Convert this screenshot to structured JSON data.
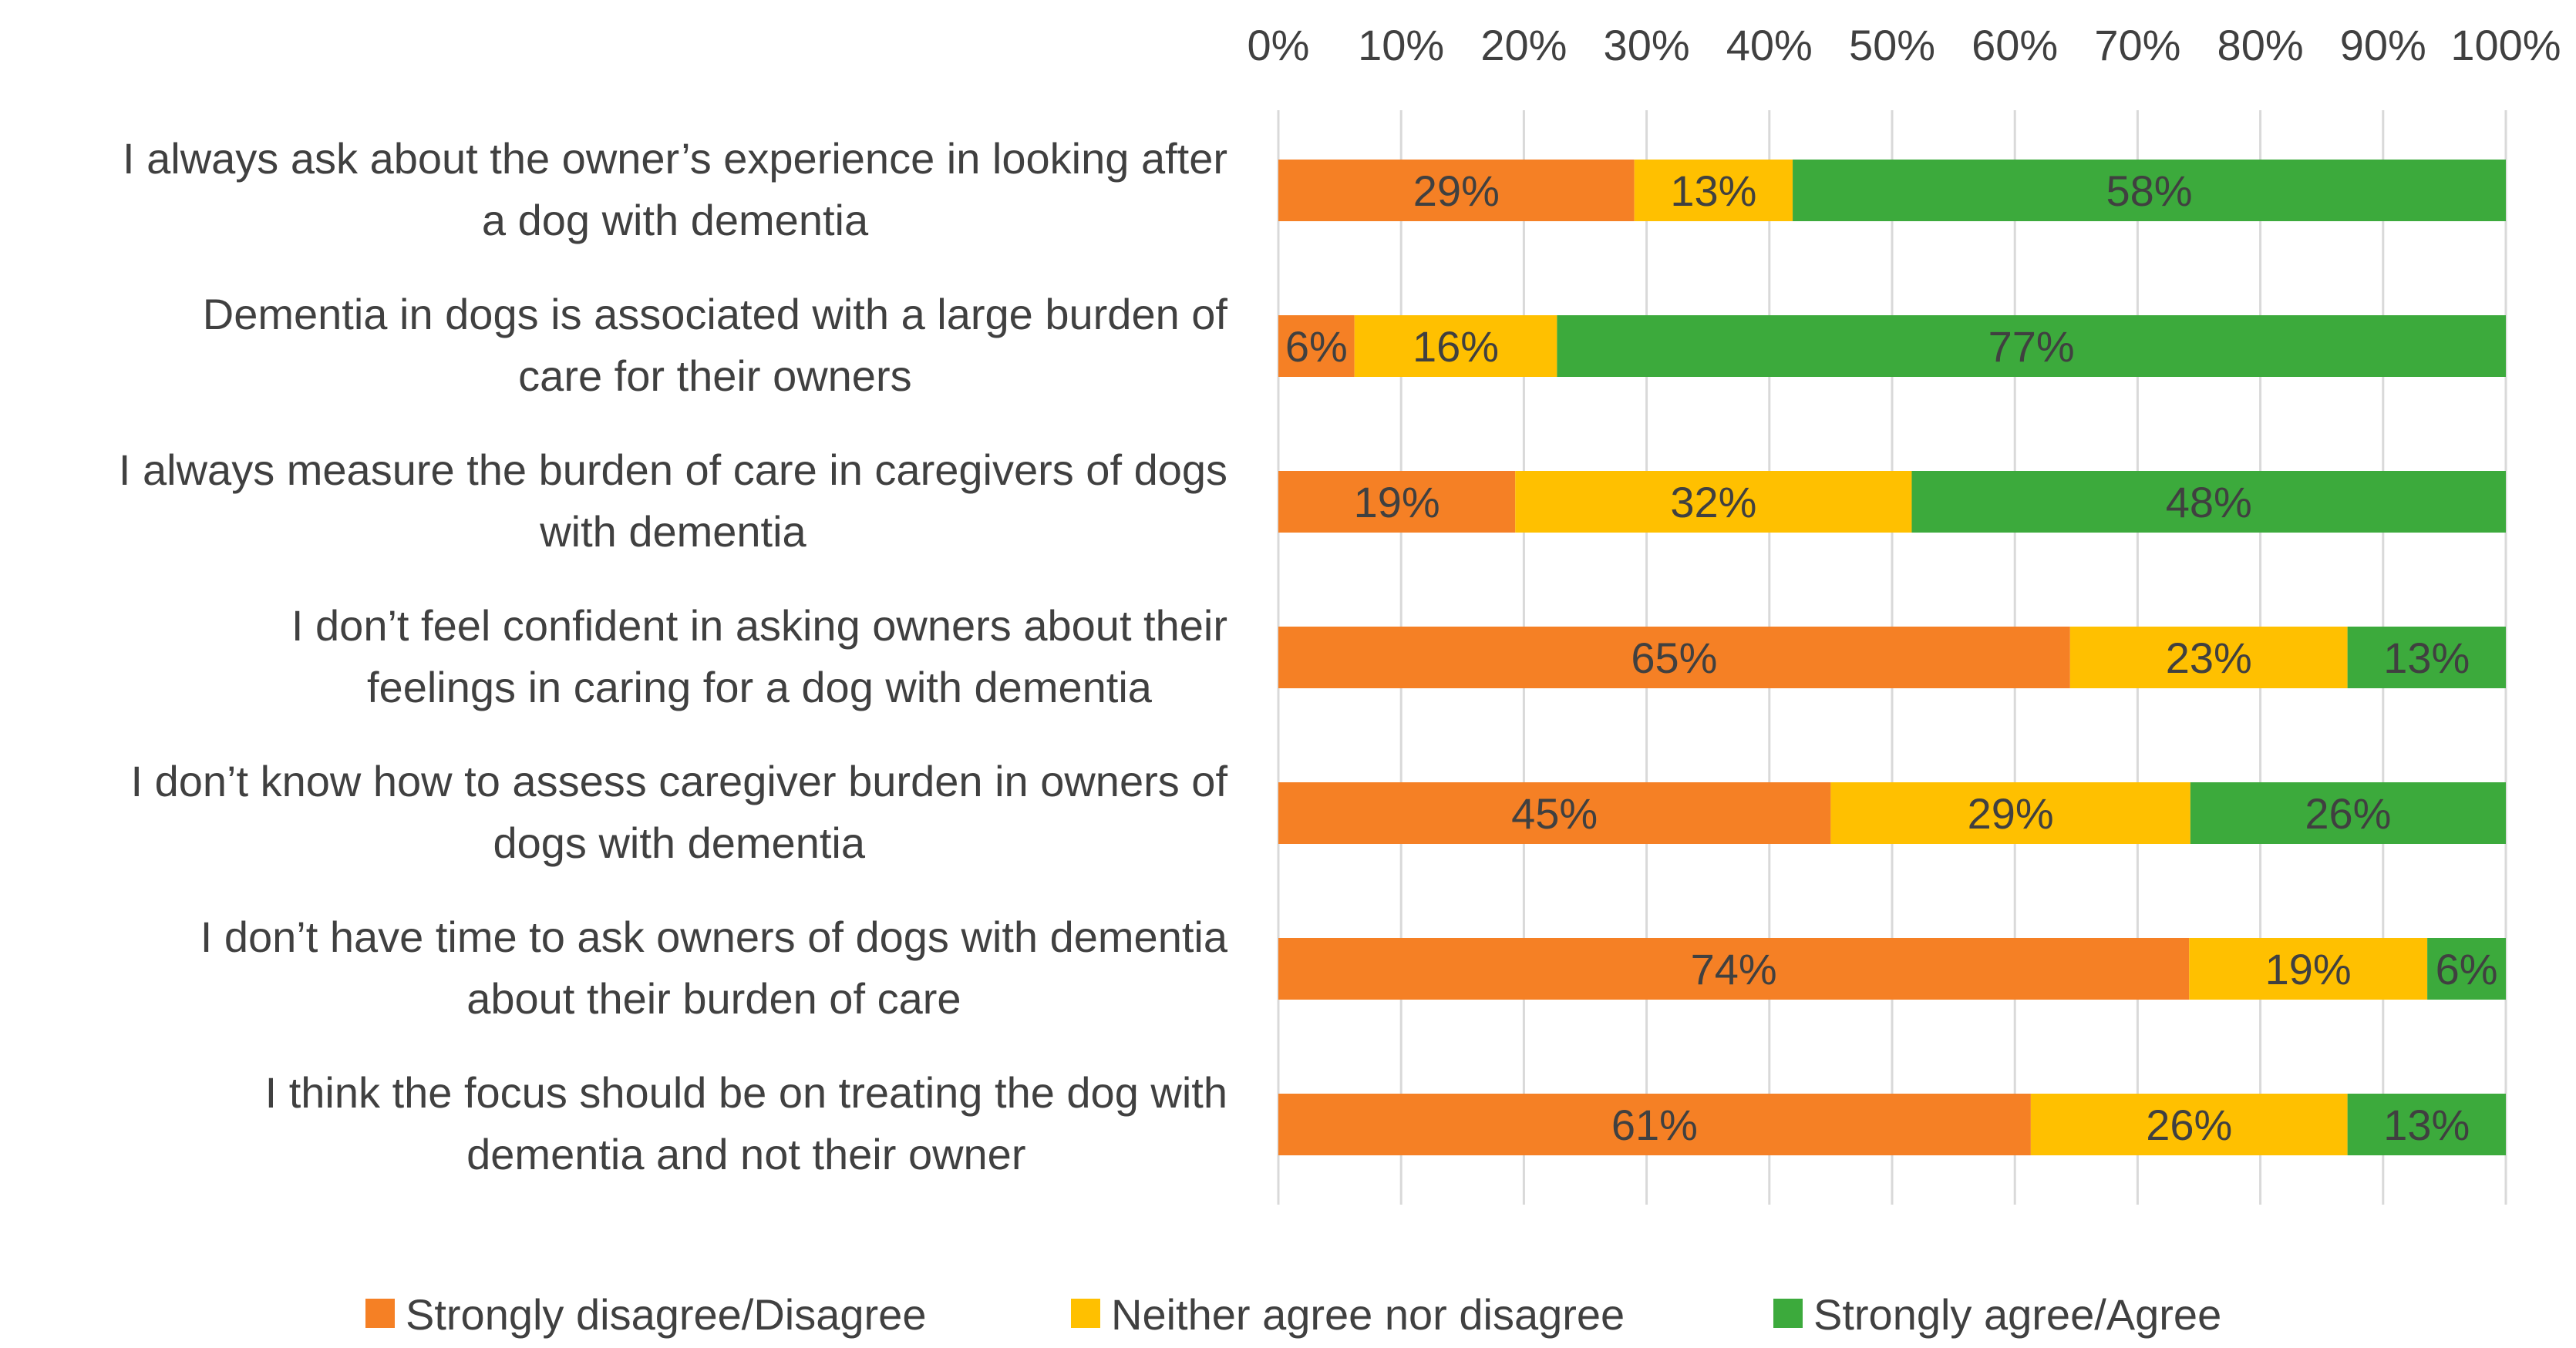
{
  "chart_data": {
    "type": "bar",
    "orientation": "horizontal",
    "stacked": "percent",
    "title": "",
    "xlabel": "",
    "ylabel": "",
    "xlim": [
      0,
      100
    ],
    "ticks": [
      "0%",
      "10%",
      "20%",
      "30%",
      "40%",
      "50%",
      "60%",
      "70%",
      "80%",
      "90%",
      "100%"
    ],
    "categories": [
      [
        "I always ask about the owner’s experience in looking after",
        "a dog with dementia"
      ],
      [
        "Dementia in dogs is associated with a large burden of",
        "care for their owners"
      ],
      [
        "I always measure the burden of care in caregivers of dogs",
        "with dementia"
      ],
      [
        "I don’t feel confident in asking owners about their",
        "feelings in caring for a dog with dementia"
      ],
      [
        "I don’t know how to assess caregiver burden in owners of",
        "dogs with dementia"
      ],
      [
        "I don’t have time to ask owners of dogs with dementia",
        "about their burden of care"
      ],
      [
        "I think the focus should be on treating the dog with",
        "dementia and not their owner"
      ]
    ],
    "series": [
      {
        "name": "Strongly disagree/Disagree",
        "color": "#F58025",
        "values": [
          29,
          6,
          19,
          65,
          45,
          74,
          61
        ],
        "bar_values": [
          29,
          6.2,
          19.3,
          64.5,
          45,
          74.2,
          61.3
        ],
        "labels": [
          "29%",
          "6%",
          "19%",
          "65%",
          "45%",
          "74%",
          "61%"
        ]
      },
      {
        "name": "Neither agree nor disagree",
        "color": "#FFC000",
        "values": [
          13,
          16,
          32,
          23,
          29,
          19,
          26
        ],
        "bar_values": [
          12.9,
          16.5,
          32.3,
          22.6,
          29.3,
          19.4,
          25.8
        ],
        "labels": [
          "13%",
          "16%",
          "32%",
          "23%",
          "29%",
          "19%",
          "26%"
        ]
      },
      {
        "name": "Strongly agree/Agree",
        "color": "#3CAA3C",
        "values": [
          58,
          77,
          48,
          13,
          26,
          6,
          13
        ],
        "bar_values": [
          58.1,
          77.3,
          48.4,
          12.9,
          25.7,
          6.4,
          12.9
        ],
        "labels": [
          "58%",
          "77%",
          "48%",
          "13%",
          "26%",
          "6%",
          "13%"
        ]
      }
    ],
    "legend_position": "bottom",
    "grid": true
  }
}
